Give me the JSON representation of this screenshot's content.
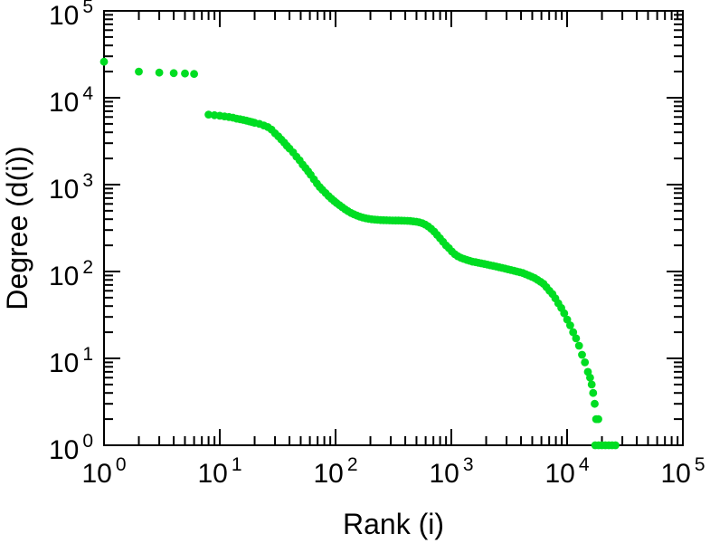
{
  "figure": {
    "background": "#ffffff",
    "frame_color": "#000000",
    "tick_color": "#000000",
    "text_color": "#000000"
  },
  "chart_data": {
    "type": "scatter",
    "title": "",
    "xlabel": "Rank (i)",
    "ylabel": "Degree (d(i))",
    "x_scale": "log",
    "y_scale": "log",
    "xlim": [
      1,
      100000
    ],
    "ylim": [
      1,
      100000
    ],
    "grid": false,
    "legend": null,
    "x_tick_exponents": [
      0,
      1,
      2,
      3,
      4,
      5
    ],
    "y_tick_exponents": [
      0,
      1,
      2,
      3,
      4,
      5
    ],
    "minor_tick_multiples": [
      2,
      3,
      4,
      5,
      6,
      7,
      8,
      9
    ],
    "marker": {
      "shape": "circle",
      "color": "#00dd22",
      "radius": 4.4
    },
    "series": [
      {
        "name": "degree-vs-rank",
        "points": [
          [
            1,
            26000
          ],
          [
            2,
            20000
          ],
          [
            3,
            19500
          ],
          [
            4,
            19200
          ],
          [
            5,
            19000
          ],
          [
            6,
            18800
          ],
          [
            8,
            6400
          ],
          [
            9,
            6300
          ],
          [
            10,
            6200
          ],
          [
            11,
            6100
          ],
          [
            12,
            6000
          ],
          [
            13,
            5900
          ],
          [
            14,
            5750
          ],
          [
            15,
            5650
          ],
          [
            16,
            5550
          ],
          [
            17,
            5450
          ],
          [
            18,
            5350
          ],
          [
            19,
            5250
          ],
          [
            20,
            5150
          ],
          [
            22,
            5000
          ],
          [
            24,
            4800
          ],
          [
            26,
            4600
          ],
          [
            28,
            4300
          ],
          [
            30,
            3900
          ],
          [
            32,
            3600
          ],
          [
            34,
            3300
          ],
          [
            36,
            3050
          ],
          [
            38,
            2800
          ],
          [
            40,
            2600
          ],
          [
            43,
            2350
          ],
          [
            46,
            2100
          ],
          [
            49,
            1900
          ],
          [
            52,
            1700
          ],
          [
            55,
            1550
          ],
          [
            58,
            1420
          ],
          [
            61,
            1300
          ],
          [
            65,
            1150
          ],
          [
            69,
            1030
          ],
          [
            73,
            940
          ],
          [
            77,
            870
          ],
          [
            82,
            800
          ],
          [
            87,
            740
          ],
          [
            92,
            690
          ],
          [
            97,
            650
          ],
          [
            102,
            615
          ],
          [
            108,
            580
          ],
          [
            114,
            550
          ],
          [
            121,
            520
          ],
          [
            128,
            495
          ],
          [
            136,
            472
          ],
          [
            144,
            455
          ],
          [
            153,
            440
          ],
          [
            162,
            428
          ],
          [
            172,
            418
          ],
          [
            182,
            410
          ],
          [
            193,
            404
          ],
          [
            205,
            399
          ],
          [
            218,
            396
          ],
          [
            231,
            393
          ],
          [
            245,
            391
          ],
          [
            260,
            390
          ],
          [
            276,
            389
          ],
          [
            293,
            388
          ],
          [
            311,
            387
          ],
          [
            330,
            386
          ],
          [
            350,
            386
          ],
          [
            371,
            385
          ],
          [
            394,
            384
          ],
          [
            418,
            383
          ],
          [
            443,
            381
          ],
          [
            470,
            378
          ],
          [
            499,
            374
          ],
          [
            529,
            368
          ],
          [
            561,
            360
          ],
          [
            595,
            347
          ],
          [
            631,
            330
          ],
          [
            669,
            310
          ],
          [
            710,
            288
          ],
          [
            753,
            264
          ],
          [
            799,
            241
          ],
          [
            847,
            220
          ],
          [
            899,
            200
          ],
          [
            953,
            186
          ],
          [
            1011,
            170
          ],
          [
            1072,
            158
          ],
          [
            1137,
            150
          ],
          [
            1206,
            144
          ],
          [
            1279,
            140
          ],
          [
            1357,
            136
          ],
          [
            1439,
            133
          ],
          [
            1526,
            130
          ],
          [
            1619,
            128
          ],
          [
            1717,
            126
          ],
          [
            1821,
            124
          ],
          [
            1931,
            122
          ],
          [
            2048,
            120
          ],
          [
            2172,
            118
          ],
          [
            2304,
            116
          ],
          [
            2443,
            114
          ],
          [
            2591,
            112
          ],
          [
            2748,
            110
          ],
          [
            2915,
            108
          ],
          [
            3092,
            106
          ],
          [
            3279,
            104
          ],
          [
            3477,
            102
          ],
          [
            3688,
            100
          ],
          [
            3911,
            98
          ],
          [
            4148,
            96
          ],
          [
            4399,
            93
          ],
          [
            4666,
            90
          ],
          [
            4948,
            87
          ],
          [
            5248,
            84
          ],
          [
            5566,
            80
          ],
          [
            5903,
            76
          ],
          [
            6260,
            72
          ],
          [
            6639,
            66
          ],
          [
            7041,
            60
          ],
          [
            7468,
            55
          ],
          [
            7920,
            49
          ],
          [
            8400,
            43
          ],
          [
            8908,
            38
          ],
          [
            9448,
            33
          ],
          [
            10020,
            28
          ],
          [
            10627,
            24
          ],
          [
            11271,
            20
          ],
          [
            11954,
            17
          ],
          [
            12678,
            14
          ],
          [
            13446,
            11
          ],
          [
            14260,
            9
          ],
          [
            15124,
            7
          ],
          [
            15800,
            6
          ],
          [
            16300,
            5
          ],
          [
            16800,
            4
          ],
          [
            17300,
            3
          ],
          [
            17800,
            2
          ],
          [
            18600,
            2
          ],
          [
            17500,
            1
          ],
          [
            18700,
            1
          ],
          [
            20000,
            1
          ],
          [
            21400,
            1
          ],
          [
            22900,
            1
          ],
          [
            24500,
            1
          ],
          [
            26200,
            1
          ]
        ]
      }
    ]
  }
}
